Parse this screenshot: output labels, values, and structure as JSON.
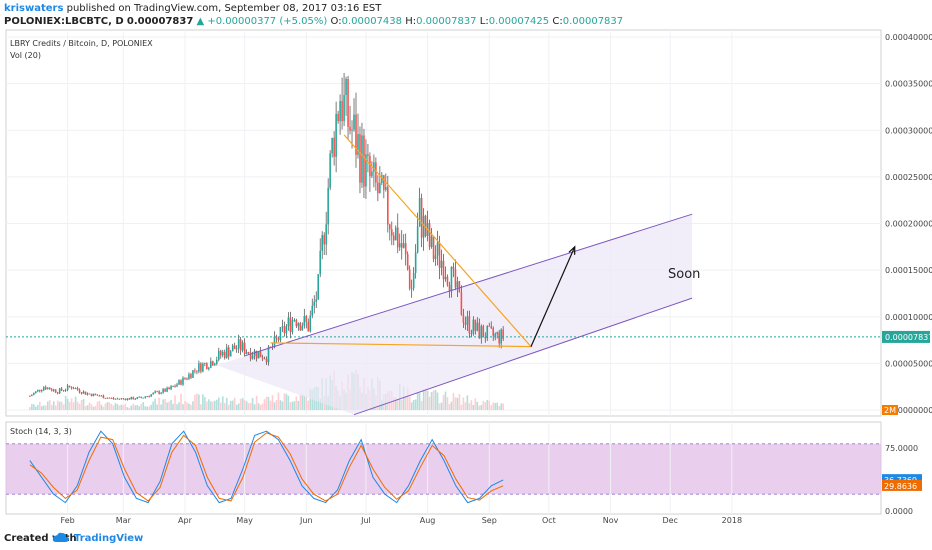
{
  "header": {
    "user": "kriswaters",
    "published": "published on TradingView.com, September 08, 2017 03:16 EST",
    "symbol": "POLONIEX:LBCBTC, D",
    "last": "0.00007837",
    "change": "▲ +0.00000377 (+5.05%)",
    "o_label": "O:",
    "o": "0.00007438",
    "h_label": "H:",
    "h": "0.00007837",
    "l_label": "L:",
    "l": "0.00007425",
    "c_label": "C:",
    "c": "0.00007837"
  },
  "legend": {
    "title": "LBRY Credits / Bitcoin, D, POLONIEX",
    "vol": "Vol (20)",
    "stoch": "Stoch (14, 3, 3)"
  },
  "footer": {
    "created": "Created with",
    "brand": "TradingView"
  },
  "colors": {
    "up": "#26a69a",
    "down": "#ef5350",
    "wick": "#444444",
    "triangle": "#f5a623",
    "channel_line": "#7e57c2",
    "channel_fill": "#ede7f6",
    "stoch_band": "#e1bee7",
    "stoch_k": "#1e88e5",
    "stoch_d": "#ef6c00",
    "price_line": "#26a69a",
    "last_tag": "#26a69a",
    "vol_tag": "#f57c00"
  },
  "chart_data": [
    {
      "type": "candlestick",
      "title": "LBRY Credits / Bitcoin, D, POLONIEX",
      "x_tick_labels": [
        "Feb",
        "Mar",
        "Apr",
        "May",
        "Jun",
        "Jul",
        "Aug",
        "Sep",
        "Oct",
        "Nov",
        "Dec",
        "2018"
      ],
      "y_tick_labels": [
        "0.00040000",
        "0.00035000",
        "0.00030000",
        "0.00025000",
        "0.00020000",
        "0.00015000",
        "0.00010000",
        "0.00005000",
        "0.00000000"
      ],
      "y_ticks": [
        0.0004,
        0.00035,
        0.0003,
        0.00025,
        0.0002,
        0.00015,
        0.0001,
        5e-05,
        0
      ],
      "ylim": [
        0,
        0.0004
      ],
      "scale_note": "price line at last value",
      "last_value_label": "0.00007837",
      "last_value": 7.837e-05,
      "volume_tag": "2M",
      "annotation": "Soon",
      "price_path": [
        [
          "2017-01-13",
          1.5e-05
        ],
        [
          "2017-01-20",
          2.5e-05
        ],
        [
          "2017-01-27",
          2e-05
        ],
        [
          "2017-02-03",
          2.5e-05
        ],
        [
          "2017-02-10",
          1.8e-05
        ],
        [
          "2017-02-17",
          1.5e-05
        ],
        [
          "2017-02-24",
          1.2e-05
        ],
        [
          "2017-03-03",
          1.2e-05
        ],
        [
          "2017-03-10",
          1.3e-05
        ],
        [
          "2017-03-17",
          1.8e-05
        ],
        [
          "2017-03-24",
          2.2e-05
        ],
        [
          "2017-03-31",
          3.2e-05
        ],
        [
          "2017-04-07",
          4.5e-05
        ],
        [
          "2017-04-14",
          5.2e-05
        ],
        [
          "2017-04-21",
          6.2e-05
        ],
        [
          "2017-04-28",
          6.8e-05
        ],
        [
          "2017-05-05",
          6.2e-05
        ],
        [
          "2017-05-12",
          5.8e-05
        ],
        [
          "2017-05-19",
          8e-05
        ],
        [
          "2017-05-26",
          0.0001
        ],
        [
          "2017-06-02",
          9e-05
        ],
        [
          "2017-06-07",
          0.00013
        ],
        [
          "2017-06-11",
          0.00022
        ],
        [
          "2017-06-15",
          0.0003
        ],
        [
          "2017-06-18",
          0.00034
        ],
        [
          "2017-06-22",
          0.00031
        ],
        [
          "2017-06-26",
          0.00029
        ],
        [
          "2017-07-02",
          0.00025
        ],
        [
          "2017-07-08",
          0.00023
        ],
        [
          "2017-07-14",
          0.0002
        ],
        [
          "2017-07-20",
          0.00017
        ],
        [
          "2017-07-24",
          0.00013
        ],
        [
          "2017-07-28",
          0.00021
        ],
        [
          "2017-08-03",
          0.00017
        ],
        [
          "2017-08-09",
          0.00016
        ],
        [
          "2017-08-15",
          0.00013
        ],
        [
          "2017-08-20",
          9.5e-05
        ],
        [
          "2017-08-26",
          8.5e-05
        ],
        [
          "2017-09-01",
          8e-05
        ],
        [
          "2017-09-08",
          7.8e-05
        ]
      ],
      "volume_path": [
        [
          "2017-01-13",
          0.12
        ],
        [
          "2017-02-01",
          0.3
        ],
        [
          "2017-03-01",
          0.12
        ],
        [
          "2017-04-01",
          0.35
        ],
        [
          "2017-05-01",
          0.28
        ],
        [
          "2017-06-01",
          0.45
        ],
        [
          "2017-06-20",
          1.0
        ],
        [
          "2017-07-15",
          0.55
        ],
        [
          "2017-08-10",
          0.4
        ],
        [
          "2017-09-08",
          0.15
        ]
      ]
    },
    {
      "type": "line",
      "title": "Stoch (14, 3, 3)",
      "y_tick_labels": [
        "75.0000",
        "0.0000"
      ],
      "ylim": [
        0,
        100
      ],
      "band": [
        20,
        80
      ],
      "current_values": [
        "36.7369",
        "29.8636"
      ],
      "series": [
        {
          "values": [
            60,
            40,
            20,
            10,
            30,
            70,
            95,
            80,
            40,
            15,
            10,
            35,
            80,
            95,
            70,
            30,
            10,
            15,
            50,
            90,
            95,
            85,
            60,
            30,
            15,
            10,
            25,
            60,
            85,
            40,
            20,
            10,
            30,
            60,
            85,
            60,
            30,
            10,
            15,
            30,
            37
          ]
        },
        {
          "values": [
            55,
            45,
            28,
            15,
            25,
            60,
            88,
            85,
            50,
            22,
            12,
            28,
            70,
            90,
            78,
            40,
            15,
            12,
            40,
            82,
            93,
            88,
            68,
            38,
            20,
            12,
            20,
            52,
            78,
            50,
            28,
            14,
            24,
            52,
            78,
            66,
            38,
            16,
            13,
            24,
            30
          ]
        }
      ]
    }
  ]
}
